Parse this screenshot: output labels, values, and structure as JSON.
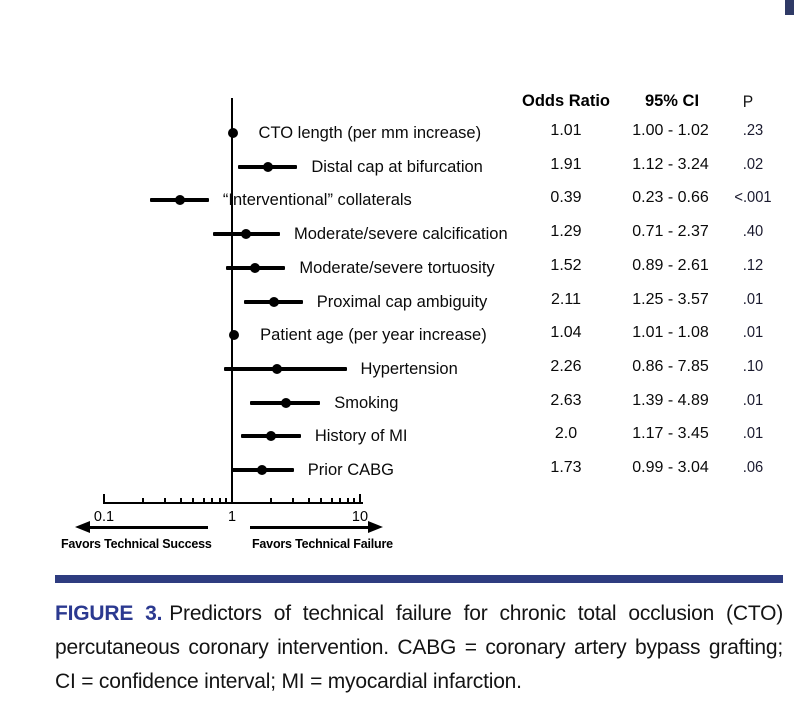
{
  "colors": {
    "navy_divider": "#2e3c80",
    "corner_square": "#2f3a66",
    "figure_label": "#2b3990",
    "plot_ink": "#000000"
  },
  "caption": {
    "label": "FIGURE 3.",
    "body": "Predictors of technical failure for chronic total occlusion (CTO) percutaneous coronary intervention. CABG = coronary artery bypass grafting; CI = confidence interval; MI = myocardial infarction."
  },
  "chart_data": {
    "type": "forest",
    "title": "",
    "x_scale": "log10",
    "x_range": [
      0.1,
      10
    ],
    "reference_value": 1,
    "x_ticks": [
      0.1,
      1,
      10
    ],
    "x_tick_labels": [
      "0.1",
      "1",
      "10"
    ],
    "grid": "off",
    "column_headers": [
      "Odds Ratio",
      "95% CI",
      "P"
    ],
    "favors_left_label": "Favors Technical Success",
    "favors_right_label": "Favors Technical Failure",
    "rows": [
      {
        "label": "CTO length (per mm increase)",
        "or": 1.01,
        "ci_low": 1.0,
        "ci_high": 1.02,
        "or_text": "1.01",
        "ci_text": "1.00 - 1.02",
        "p_text": ".23"
      },
      {
        "label": "Distal cap at bifurcation",
        "or": 1.91,
        "ci_low": 1.12,
        "ci_high": 3.24,
        "or_text": "1.91",
        "ci_text": "1.12 - 3.24",
        "p_text": ".02"
      },
      {
        "label": "“Interventional” collaterals",
        "or": 0.39,
        "ci_low": 0.23,
        "ci_high": 0.66,
        "or_text": "0.39",
        "ci_text": "0.23 - 0.66",
        "p_text": "<.001"
      },
      {
        "label": "Moderate/severe calcification",
        "or": 1.29,
        "ci_low": 0.71,
        "ci_high": 2.37,
        "or_text": "1.29",
        "ci_text": "0.71 - 2.37",
        "p_text": ".40"
      },
      {
        "label": "Moderate/severe tortuosity",
        "or": 1.52,
        "ci_low": 0.89,
        "ci_high": 2.61,
        "or_text": "1.52",
        "ci_text": "0.89 - 2.61",
        "p_text": ".12"
      },
      {
        "label": "Proximal cap ambiguity",
        "or": 2.11,
        "ci_low": 1.25,
        "ci_high": 3.57,
        "or_text": "2.11",
        "ci_text": "1.25 - 3.57",
        "p_text": ".01"
      },
      {
        "label": "Patient age (per year increase)",
        "or": 1.04,
        "ci_low": 1.01,
        "ci_high": 1.08,
        "or_text": "1.04",
        "ci_text": "1.01 - 1.08",
        "p_text": ".01"
      },
      {
        "label": "Hypertension",
        "or": 2.26,
        "ci_low": 0.86,
        "ci_high": 7.85,
        "or_text": "2.26",
        "ci_text": "0.86 - 7.85",
        "p_text": ".10"
      },
      {
        "label": "Smoking",
        "or": 2.63,
        "ci_low": 1.39,
        "ci_high": 4.89,
        "or_text": "2.63",
        "ci_text": "1.39 - 4.89",
        "p_text": ".01"
      },
      {
        "label": "History of MI",
        "or": 2.0,
        "ci_low": 1.17,
        "ci_high": 3.45,
        "or_text": "2.0",
        "ci_text": "1.17 - 3.45",
        "p_text": ".01"
      },
      {
        "label": "Prior CABG",
        "or": 1.73,
        "ci_low": 0.99,
        "ci_high": 3.04,
        "or_text": "1.73",
        "ci_text": "0.99 - 3.04",
        "p_text": ".06"
      }
    ]
  }
}
